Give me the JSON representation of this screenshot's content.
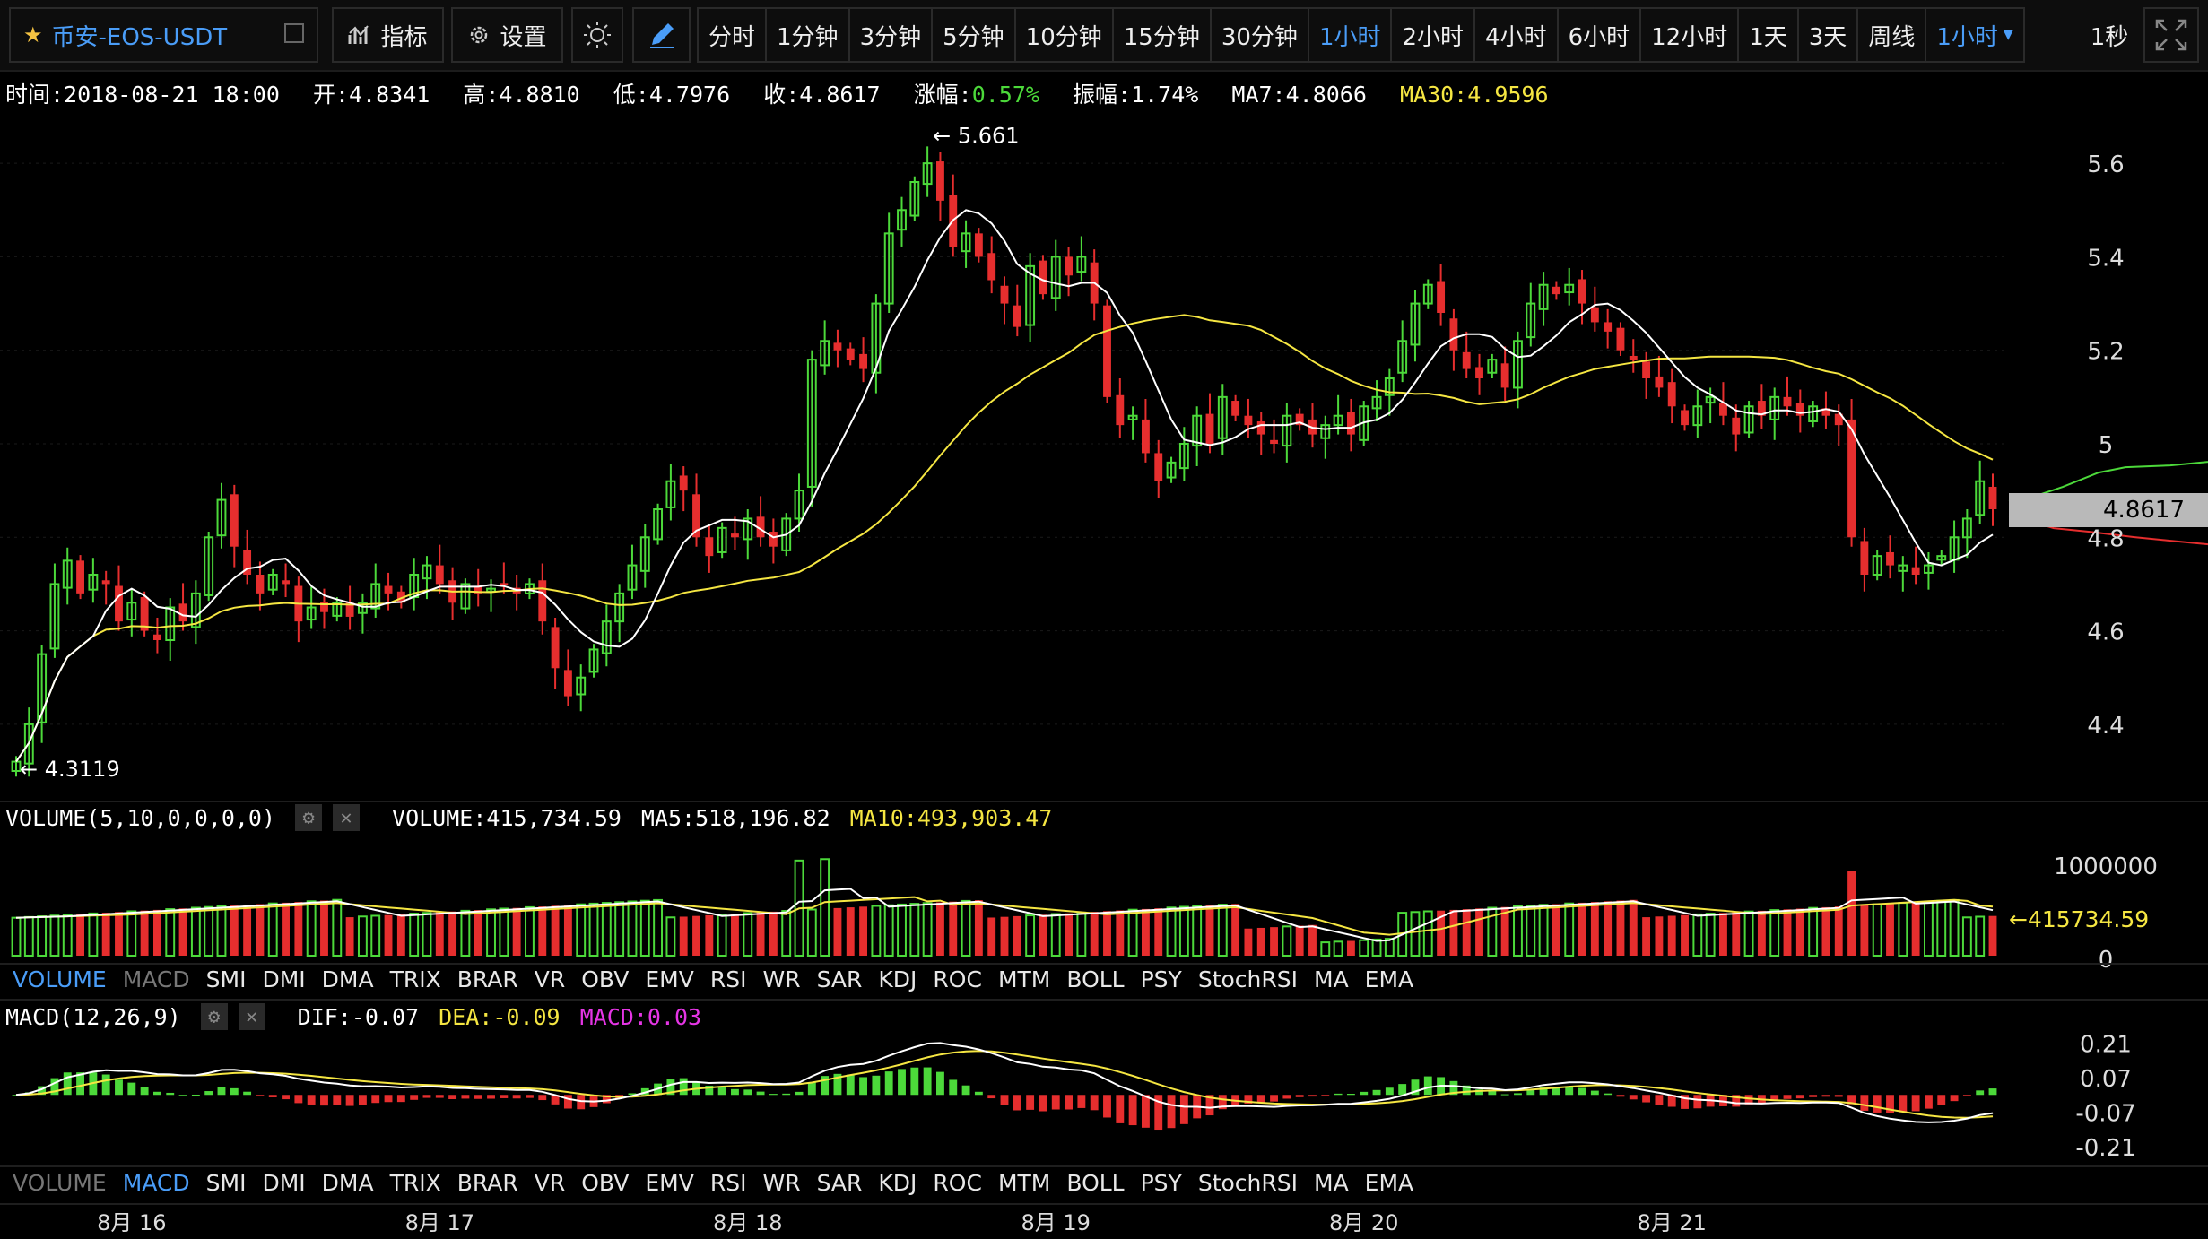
{
  "toolbar": {
    "symbol": "币安-EOS-USDT",
    "indicators_label": "指标",
    "settings_label": "设置",
    "periods": [
      "分时",
      "1分钟",
      "3分钟",
      "5分钟",
      "10分钟",
      "15分钟",
      "30分钟",
      "1小时",
      "2小时",
      "4小时",
      "6小时",
      "12小时",
      "1天",
      "3天",
      "周线"
    ],
    "active_period": "1小时",
    "period_dropdown": "1小时",
    "refresh": "1秒"
  },
  "info": {
    "time": "时间:2018-08-21 18:00",
    "open": "开:4.8341",
    "high": "高:4.8810",
    "low": "低:4.7976",
    "close": "收:4.8617",
    "change_label": "涨幅:",
    "change_value": "0.57%",
    "amplitude": "振幅:1.74%",
    "ma7": "MA7:4.8066",
    "ma30": "MA30:4.9596"
  },
  "price_axis": [
    "5.6",
    "5.4",
    "5.2",
    "5",
    "4.8",
    "4.6",
    "4.4"
  ],
  "current_price": "4.8617",
  "high_marker": "← 5.661",
  "low_marker": "← 4.3119",
  "volume": {
    "title": "VOLUME(5,10,0,0,0,0)",
    "value": "VOLUME:415,734.59",
    "ma5": "MA5:518,196.82",
    "ma10": "MA10:493,903.47",
    "axis": [
      "1000000",
      "0"
    ],
    "current_marker": "←415734.59"
  },
  "macd": {
    "title": "MACD(12,26,9)",
    "dif": "DIF:-0.07",
    "dea": "DEA:-0.09",
    "macd": "MACD:0.03",
    "axis": [
      "0.21",
      "0.07",
      "-0.07",
      "-0.21"
    ]
  },
  "indicator_tabs": [
    "VOLUME",
    "MACD",
    "SMI",
    "DMI",
    "DMA",
    "TRIX",
    "BRAR",
    "VR",
    "OBV",
    "EMV",
    "RSI",
    "WR",
    "SAR",
    "KDJ",
    "ROC",
    "MTM",
    "BOLL",
    "PSY",
    "StochRSI",
    "MA",
    "EMA"
  ],
  "date_axis": [
    "8月 16",
    "8月 17",
    "8月 18",
    "8月 19",
    "8月 20",
    "8月 21"
  ],
  "colors": {
    "up": "#4cd93a",
    "down": "#e62e2e",
    "ma7": "#ffffff",
    "ma30": "#f5e642",
    "accent": "#4a9df8"
  },
  "chart_data": {
    "type": "candlestick",
    "interval": "1h",
    "price_ylim": [
      4.3,
      5.7
    ],
    "price_ticks": [
      4.4,
      4.6,
      4.8,
      5.0,
      5.2,
      5.4,
      5.6
    ],
    "x_labels": [
      "8月 16",
      "8月 17",
      "8月 18",
      "8月 19",
      "8月 20",
      "8月 21"
    ],
    "high_price": 5.661,
    "low_price": 4.3119,
    "last": {
      "open": 4.8341,
      "high": 4.881,
      "low": 4.7976,
      "close": 4.8617,
      "ma7": 4.8066,
      "ma30": 4.9596
    },
    "close_series": [
      4.32,
      4.4,
      4.55,
      4.7,
      4.75,
      4.68,
      4.72,
      4.7,
      4.62,
      4.66,
      4.6,
      4.58,
      4.65,
      4.62,
      4.68,
      4.8,
      4.88,
      4.78,
      4.72,
      4.68,
      4.72,
      4.7,
      4.62,
      4.65,
      4.64,
      4.66,
      4.63,
      4.66,
      4.7,
      4.68,
      4.66,
      4.72,
      4.74,
      4.7,
      4.66,
      4.7,
      4.68,
      4.69,
      4.7,
      4.68,
      4.7,
      4.62,
      4.52,
      4.46,
      4.5,
      4.56,
      4.62,
      4.68,
      4.74,
      4.8,
      4.86,
      4.92,
      4.9,
      4.8,
      4.76,
      4.82,
      4.8,
      4.84,
      4.8,
      4.78,
      4.84,
      4.9,
      5.18,
      5.22,
      5.2,
      5.18,
      5.16,
      5.3,
      5.45,
      5.5,
      5.56,
      5.6,
      5.52,
      5.42,
      5.45,
      5.4,
      5.35,
      5.3,
      5.25,
      5.38,
      5.32,
      5.4,
      5.36,
      5.4,
      5.3,
      5.1,
      5.04,
      5.06,
      4.98,
      4.92,
      4.96,
      5.0,
      5.06,
      5.0,
      5.1,
      5.06,
      5.04,
      5.02,
      5.0,
      5.06,
      5.04,
      5.02,
      5.04,
      5.06,
      5.02,
      5.08,
      5.1,
      5.14,
      5.22,
      5.3,
      5.34,
      5.28,
      5.2,
      5.16,
      5.14,
      5.18,
      5.12,
      5.22,
      5.3,
      5.34,
      5.32,
      5.34,
      5.3,
      5.26,
      5.24,
      5.2,
      5.18,
      5.14,
      5.12,
      5.08,
      5.04,
      5.08,
      5.1,
      5.06,
      5.02,
      5.08,
      5.06,
      5.1,
      5.08,
      5.06,
      5.08,
      5.06,
      5.04,
      4.8,
      4.72,
      4.76,
      4.74,
      4.74,
      4.72,
      4.74,
      4.76,
      4.8,
      4.84,
      4.92,
      4.86
    ],
    "volume": {
      "ylim": [
        0,
        1250000
      ],
      "last": 415734.59,
      "ma5": 518196.82,
      "ma10": 493903.47
    },
    "macd": {
      "ylim": [
        -0.28,
        0.26
      ],
      "dif": -0.07,
      "dea": -0.09,
      "macd": 0.03
    }
  }
}
